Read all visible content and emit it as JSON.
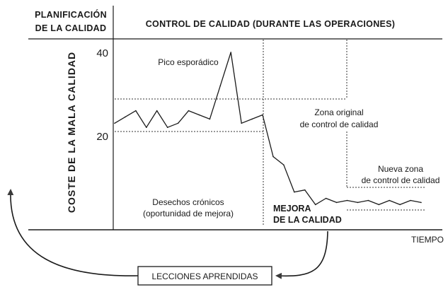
{
  "header": {
    "left_line1": "PLANIFICACIÓN",
    "left_line2": "DE LA CALIDAD",
    "right": "CONTROL DE CALIDAD (DURANTE LAS OPERACIONES)"
  },
  "axes": {
    "ylabel": "COSTE DE LA MALA CALIDAD",
    "xlabel": "TIEMPO",
    "ytick_high": "40",
    "ytick_low": "20"
  },
  "annotations": {
    "sporadic_peak": "Pico esporádico",
    "original_zone_line1": "Zona original",
    "original_zone_line2": "de control de calidad",
    "new_zone_line1": "Nueva zona",
    "new_zone_line2": "de control de calidad",
    "chronic_line1": "Desechos crónicos",
    "chronic_line2": "(oportunidad de mejora)",
    "improvement_line1": "MEJORA",
    "improvement_line2": "DE LA CALIDAD"
  },
  "lessons": {
    "label": "LECCIONES APRENDIDAS"
  },
  "chart_data": {
    "type": "line",
    "ylabel": "COSTE DE LA MALA CALIDAD",
    "xlabel": "TIEMPO",
    "yticks": [
      20,
      40
    ],
    "series": [
      {
        "values": [
          23,
          24.5,
          26,
          22,
          26,
          22,
          23,
          26,
          25,
          24,
          32,
          40,
          23,
          24,
          25,
          15,
          13,
          6.5,
          7,
          3.5,
          5,
          4,
          4.5,
          4,
          4.5,
          3.5,
          4.5,
          3.5,
          4.5,
          4
        ]
      }
    ],
    "zones": {
      "original": [
        21,
        29
      ],
      "new": [
        3,
        7.5
      ]
    }
  }
}
